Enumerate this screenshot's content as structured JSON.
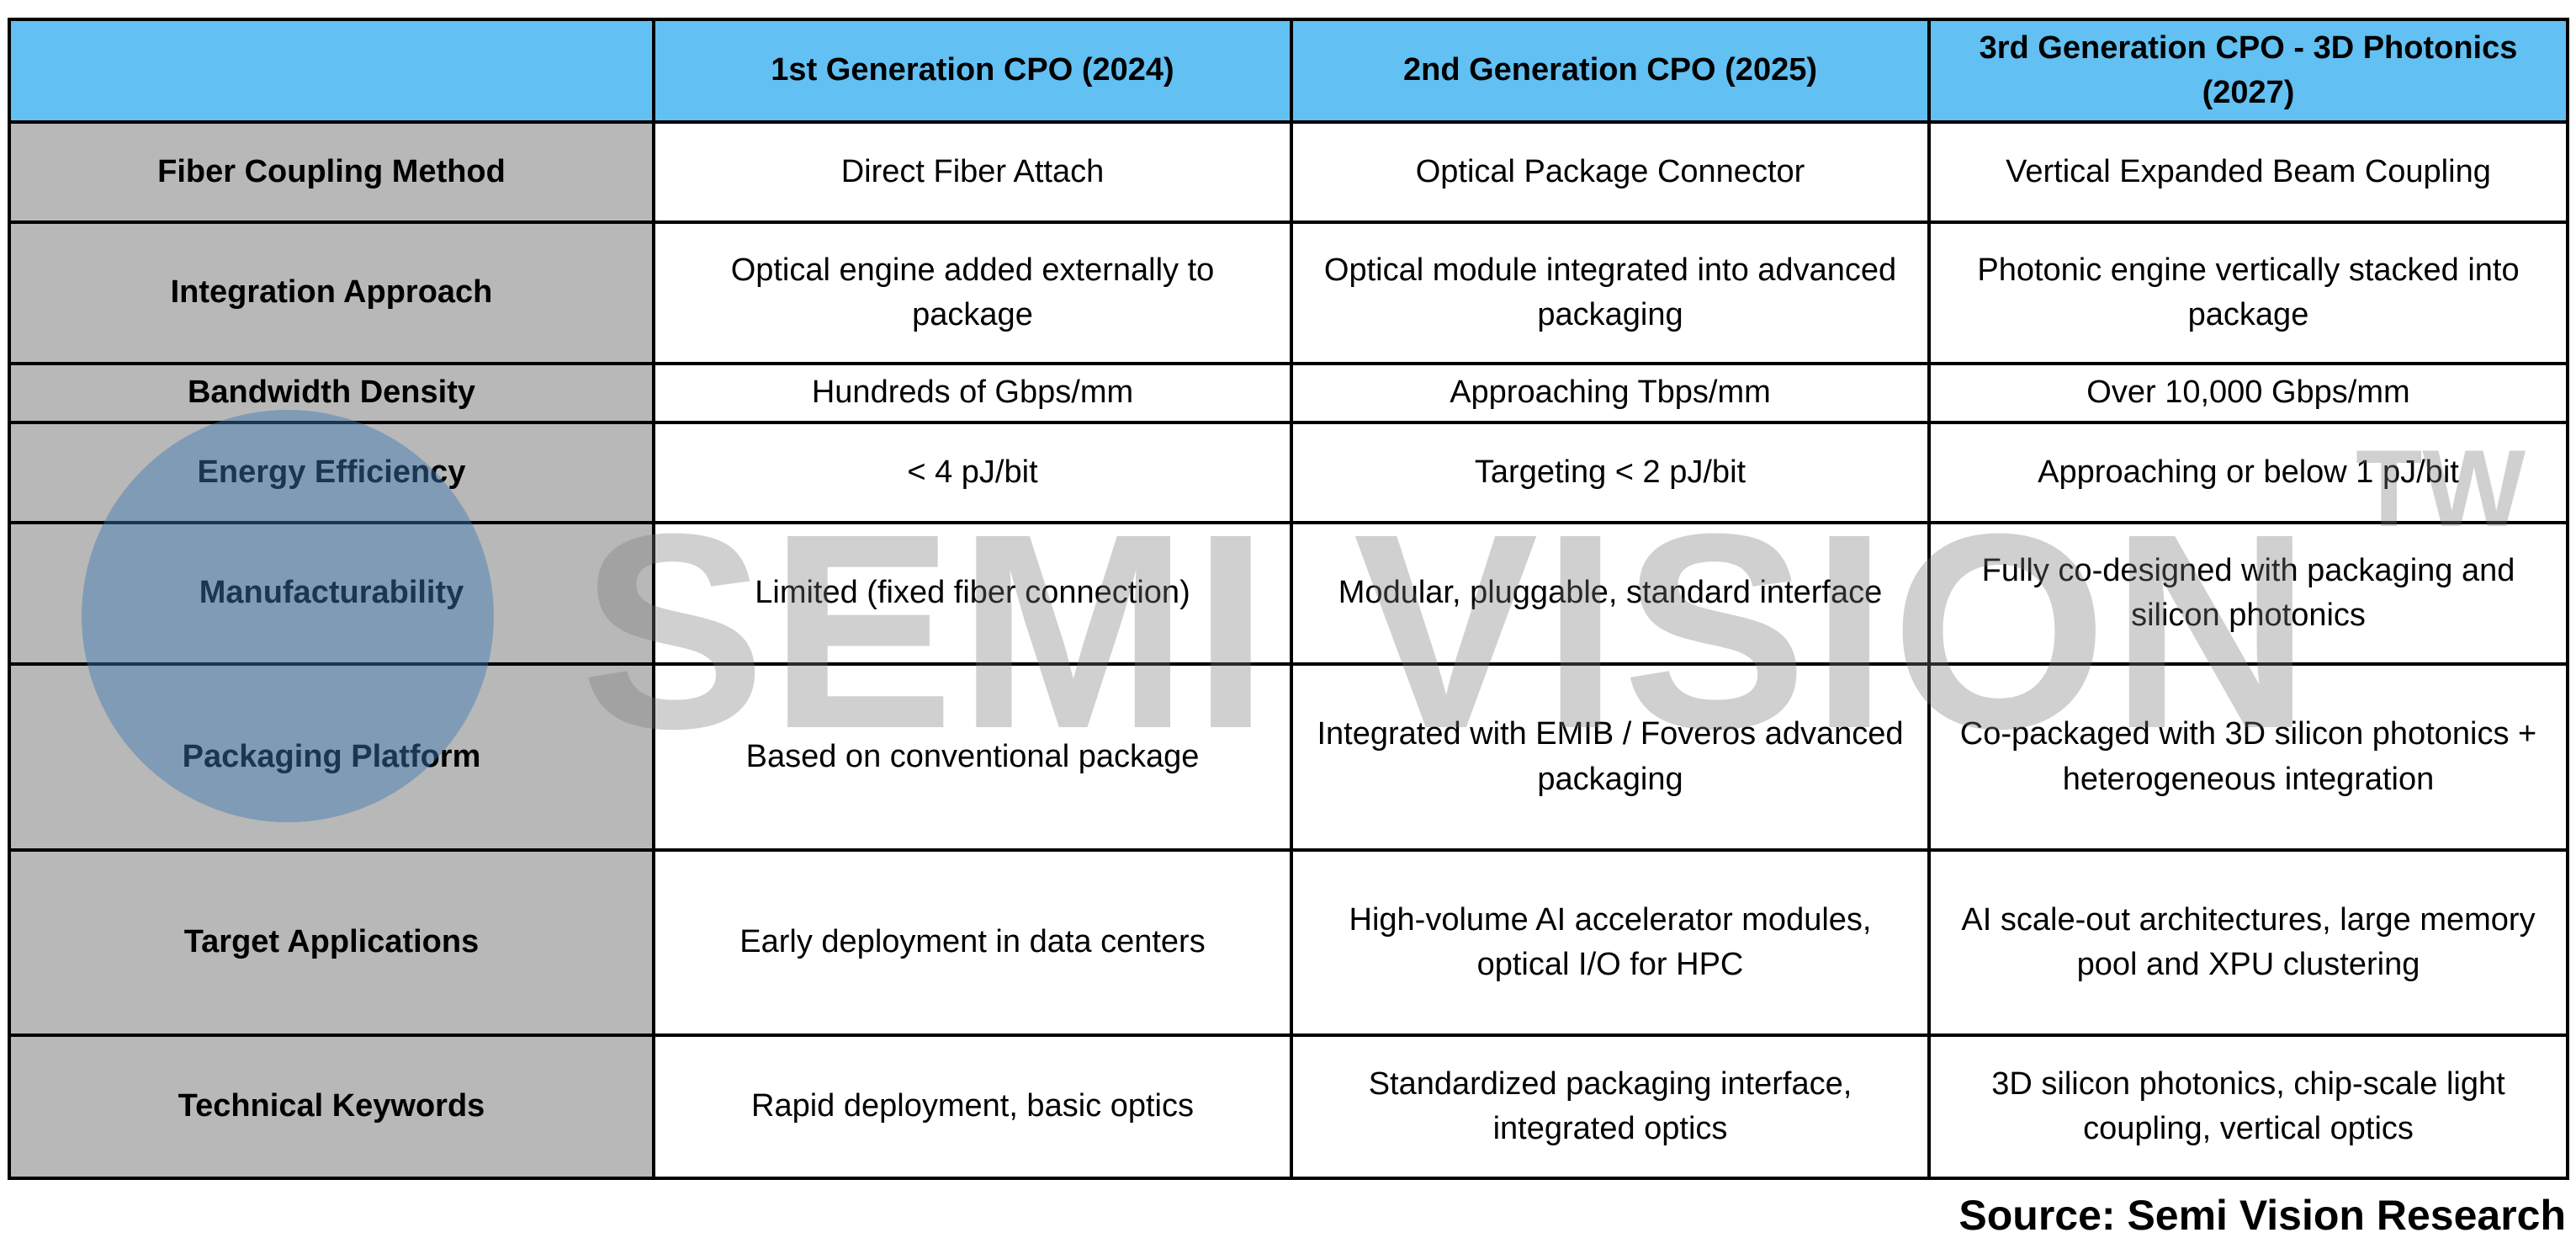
{
  "table": {
    "headers": [
      "",
      "1st Generation CPO (2024)",
      "2nd Generation CPO (2025)",
      "3rd Generation CPO - 3D Photonics (2027)"
    ],
    "rows": [
      [
        "Fiber Coupling Method",
        "Direct Fiber Attach",
        "Optical Package Connector",
        "Vertical Expanded Beam Coupling"
      ],
      [
        "Integration Approach",
        "Optical engine added externally to package",
        "Optical module integrated into advanced packaging",
        "Photonic engine vertically stacked into package"
      ],
      [
        "Bandwidth Density",
        "Hundreds of Gbps/mm",
        "Approaching Tbps/mm",
        "Over 10,000 Gbps/mm"
      ],
      [
        "Energy Efficiency",
        "< 4 pJ/bit",
        "Targeting < 2 pJ/bit",
        "Approaching or below 1 pJ/bit"
      ],
      [
        "Manufacturability",
        "Limited (fixed fiber connection)",
        "Modular, pluggable, standard interface",
        "Fully co-designed with packaging and silicon photonics"
      ],
      [
        "Packaging Platform",
        "Based on conventional package",
        "Integrated with EMIB / Foveros advanced packaging",
        "Co-packaged with 3D silicon photonics + heterogeneous integration"
      ],
      [
        "Target Applications",
        "Early deployment in data centers",
        "High-volume AI accelerator modules, optical I/O for HPC",
        "AI scale-out architectures, large memory pool and XPU clustering"
      ],
      [
        "Technical Keywords",
        "Rapid deployment, basic optics",
        "Standardized packaging interface, integrated optics",
        "3D silicon photonics, chip-scale light coupling, vertical optics"
      ]
    ]
  },
  "watermark": {
    "text": "SEMI VISION",
    "suffix": "TW"
  },
  "source": "Source: Semi Vision Research",
  "colors": {
    "header": "#62c0f2",
    "row_header": "#b8b8b8"
  }
}
